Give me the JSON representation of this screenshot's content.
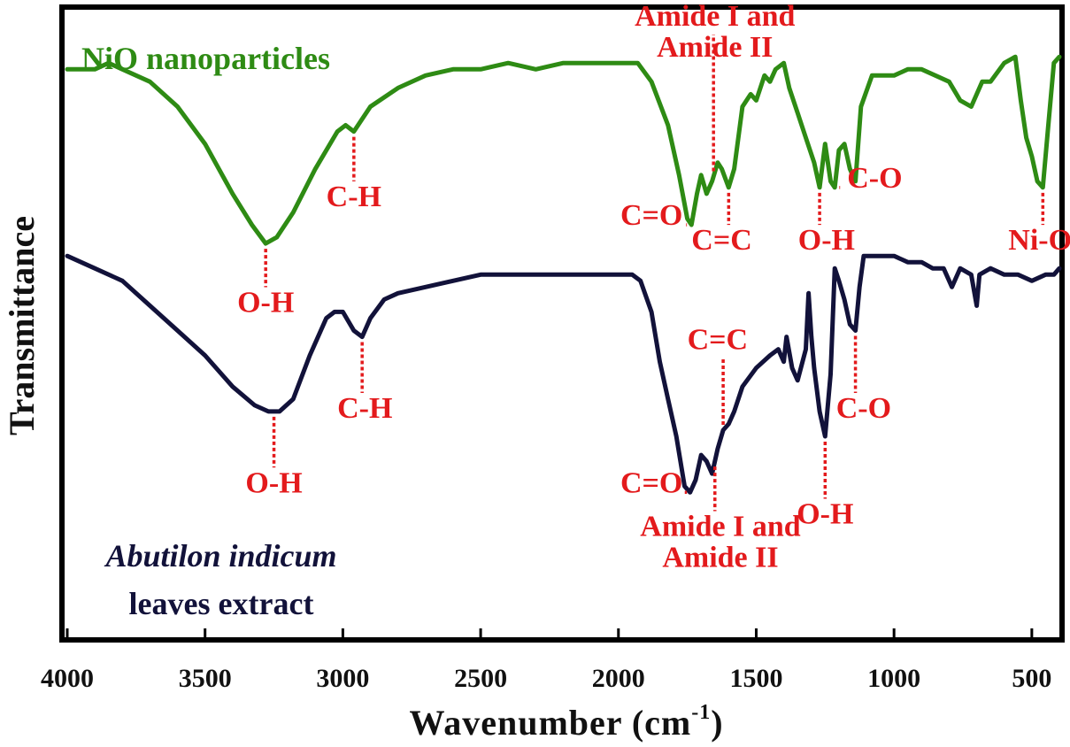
{
  "chart_data": {
    "type": "line",
    "title": "",
    "xlabel": "Wavenumber (cm",
    "xlabel_sup": "-1",
    "xlabel_close": ")",
    "ylabel": "Transmittance",
    "xlim": [
      4000,
      400
    ],
    "x_reversed": true,
    "xticks": [
      4000,
      3500,
      3000,
      2500,
      2000,
      1500,
      1000,
      500
    ],
    "grid": false,
    "y_units": "arbitrary (stacked, 0-100)",
    "ylim": [
      0,
      100
    ],
    "colors": {
      "green": "#2e8b14",
      "navy": "#12123a",
      "annotation": "#e31a1c"
    },
    "series": [
      {
        "name": "NiO nanoparticles",
        "color": "#2e8b14",
        "points": [
          [
            4000,
            91
          ],
          [
            3900,
            91
          ],
          [
            3850,
            92
          ],
          [
            3800,
            91
          ],
          [
            3700,
            89
          ],
          [
            3600,
            85
          ],
          [
            3500,
            79
          ],
          [
            3400,
            71
          ],
          [
            3330,
            66
          ],
          [
            3280,
            63
          ],
          [
            3240,
            64
          ],
          [
            3180,
            68
          ],
          [
            3100,
            75
          ],
          [
            3020,
            81
          ],
          [
            2990,
            82
          ],
          [
            2960,
            81
          ],
          [
            2900,
            85
          ],
          [
            2800,
            88
          ],
          [
            2700,
            90
          ],
          [
            2600,
            91
          ],
          [
            2500,
            91
          ],
          [
            2400,
            92
          ],
          [
            2300,
            91
          ],
          [
            2200,
            92
          ],
          [
            2100,
            92
          ],
          [
            2000,
            92
          ],
          [
            1930,
            92
          ],
          [
            1880,
            89
          ],
          [
            1820,
            82
          ],
          [
            1780,
            74
          ],
          [
            1750,
            67
          ],
          [
            1735,
            66
          ],
          [
            1715,
            71
          ],
          [
            1700,
            74
          ],
          [
            1680,
            71
          ],
          [
            1660,
            73
          ],
          [
            1640,
            76
          ],
          [
            1625,
            75
          ],
          [
            1600,
            72
          ],
          [
            1580,
            75
          ],
          [
            1550,
            85
          ],
          [
            1520,
            87
          ],
          [
            1500,
            86
          ],
          [
            1470,
            90
          ],
          [
            1450,
            89
          ],
          [
            1430,
            91
          ],
          [
            1400,
            92
          ],
          [
            1380,
            88
          ],
          [
            1350,
            84
          ],
          [
            1320,
            80
          ],
          [
            1290,
            76
          ],
          [
            1270,
            72
          ],
          [
            1250,
            79
          ],
          [
            1230,
            73
          ],
          [
            1215,
            72
          ],
          [
            1200,
            78
          ],
          [
            1180,
            79
          ],
          [
            1160,
            75
          ],
          [
            1140,
            73
          ],
          [
            1120,
            85
          ],
          [
            1080,
            90
          ],
          [
            1000,
            90
          ],
          [
            950,
            91
          ],
          [
            900,
            91
          ],
          [
            850,
            90
          ],
          [
            800,
            89
          ],
          [
            760,
            86
          ],
          [
            720,
            85
          ],
          [
            680,
            89
          ],
          [
            650,
            89
          ],
          [
            600,
            92
          ],
          [
            560,
            93
          ],
          [
            540,
            86
          ],
          [
            520,
            80
          ],
          [
            500,
            77
          ],
          [
            480,
            73
          ],
          [
            460,
            72
          ],
          [
            440,
            82
          ],
          [
            420,
            92
          ],
          [
            400,
            93
          ]
        ]
      },
      {
        "name": "Abutilon indicum leaves extract",
        "name_line1": "Abutilon indicum",
        "name_line2": "leaves extract",
        "color": "#12123a",
        "points": [
          [
            4000,
            61
          ],
          [
            3900,
            59
          ],
          [
            3800,
            57
          ],
          [
            3700,
            53
          ],
          [
            3600,
            49
          ],
          [
            3500,
            45
          ],
          [
            3400,
            40
          ],
          [
            3320,
            37
          ],
          [
            3270,
            36
          ],
          [
            3230,
            36
          ],
          [
            3180,
            38
          ],
          [
            3120,
            45
          ],
          [
            3060,
            51
          ],
          [
            3030,
            52
          ],
          [
            3000,
            52
          ],
          [
            2960,
            49
          ],
          [
            2930,
            48
          ],
          [
            2900,
            51
          ],
          [
            2850,
            54
          ],
          [
            2800,
            55
          ],
          [
            2700,
            56
          ],
          [
            2600,
            57
          ],
          [
            2500,
            58
          ],
          [
            2400,
            58
          ],
          [
            2300,
            58
          ],
          [
            2200,
            58
          ],
          [
            2100,
            58
          ],
          [
            2000,
            58
          ],
          [
            1950,
            58
          ],
          [
            1920,
            57
          ],
          [
            1880,
            52
          ],
          [
            1850,
            44
          ],
          [
            1820,
            38
          ],
          [
            1790,
            32
          ],
          [
            1760,
            24
          ],
          [
            1740,
            23
          ],
          [
            1720,
            25
          ],
          [
            1700,
            29
          ],
          [
            1680,
            28
          ],
          [
            1660,
            26
          ],
          [
            1640,
            30
          ],
          [
            1620,
            33
          ],
          [
            1600,
            34
          ],
          [
            1580,
            36
          ],
          [
            1550,
            40
          ],
          [
            1500,
            43
          ],
          [
            1450,
            45
          ],
          [
            1420,
            46
          ],
          [
            1400,
            44
          ],
          [
            1390,
            48
          ],
          [
            1370,
            43
          ],
          [
            1350,
            41
          ],
          [
            1320,
            46
          ],
          [
            1310,
            55
          ],
          [
            1300,
            48
          ],
          [
            1290,
            43
          ],
          [
            1270,
            36
          ],
          [
            1250,
            32
          ],
          [
            1230,
            42
          ],
          [
            1215,
            59
          ],
          [
            1200,
            57
          ],
          [
            1180,
            54
          ],
          [
            1160,
            50
          ],
          [
            1140,
            49
          ],
          [
            1125,
            56
          ],
          [
            1110,
            61
          ],
          [
            1080,
            61
          ],
          [
            1000,
            61
          ],
          [
            950,
            60
          ],
          [
            900,
            60
          ],
          [
            860,
            59
          ],
          [
            820,
            59
          ],
          [
            790,
            56
          ],
          [
            760,
            59
          ],
          [
            720,
            58
          ],
          [
            700,
            53
          ],
          [
            690,
            58
          ],
          [
            650,
            59
          ],
          [
            600,
            58
          ],
          [
            550,
            58
          ],
          [
            500,
            57
          ],
          [
            450,
            58
          ],
          [
            420,
            58
          ],
          [
            400,
            59
          ]
        ]
      }
    ],
    "annotations": [
      {
        "label": "O-H",
        "series": 0,
        "x": 3280,
        "text_x": 3280,
        "text_y": 52
      },
      {
        "label": "C-H",
        "series": 0,
        "x": 2960,
        "text_x": 2960,
        "text_y": 69
      },
      {
        "label": "Amide I and",
        "series": 0,
        "x": 1655,
        "text_x": 1650,
        "text_y": 98
      },
      {
        "label": "Amide II",
        "series": -1,
        "x": 1650,
        "text_x": 1650,
        "text_y": 93
      },
      {
        "label": "C=O",
        "series": 0,
        "x": 1735,
        "text_x": 1880,
        "text_y": 66,
        "dir": "h"
      },
      {
        "label": "C=C",
        "series": 0,
        "x": 1600,
        "text_x": 1625,
        "text_y": 62
      },
      {
        "label": "O-H",
        "series": 0,
        "x": 1270,
        "text_x": 1245,
        "text_y": 62
      },
      {
        "label": "C-O",
        "series": 0,
        "x": 1215,
        "text_x": 1070,
        "text_y": 72,
        "dir": "h"
      },
      {
        "label": "Ni-O",
        "series": 0,
        "x": 460,
        "text_x": 470,
        "text_y": 62
      },
      {
        "label": "O-H",
        "series": 1,
        "x": 3250,
        "text_x": 3250,
        "text_y": 23
      },
      {
        "label": "C-H",
        "series": 1,
        "x": 2930,
        "text_x": 2920,
        "text_y": 35
      },
      {
        "label": "C=C",
        "series": 1,
        "x": 1620,
        "text_x": 1640,
        "text_y": 46
      },
      {
        "label": "C=O",
        "series": 1,
        "x": 1740,
        "text_x": 1880,
        "text_y": 23,
        "dir": "h"
      },
      {
        "label": "Amide I and",
        "series": 1,
        "x": 1650,
        "text_x": 1630,
        "text_y": 16
      },
      {
        "label": "Amide II",
        "series": -1,
        "x": 1630,
        "text_x": 1630,
        "text_y": 11
      },
      {
        "label": "O-H",
        "series": 1,
        "x": 1250,
        "text_x": 1250,
        "text_y": 18
      },
      {
        "label": "C-O",
        "series": 1,
        "x": 1140,
        "text_x": 1110,
        "text_y": 35
      }
    ]
  }
}
